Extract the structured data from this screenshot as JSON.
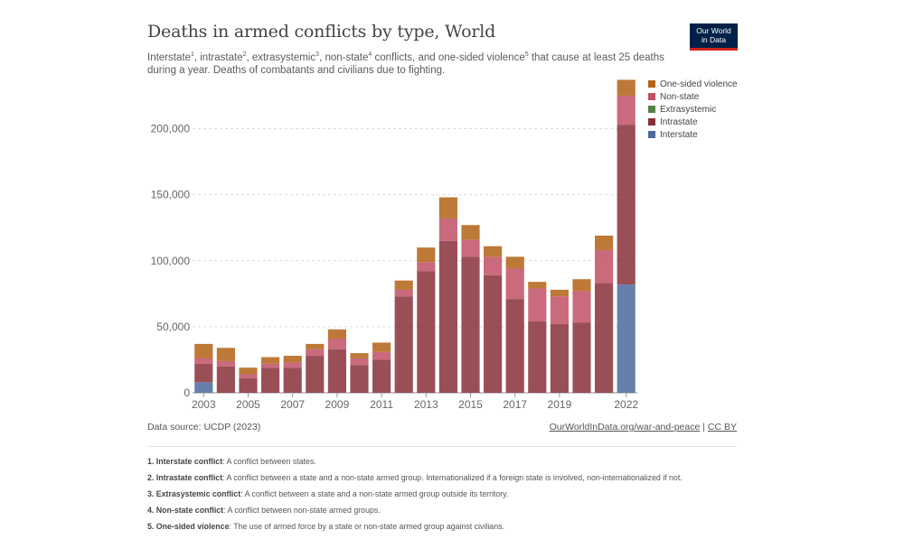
{
  "title": "Deaths in armed conflicts by type, World",
  "subtitle": {
    "parts": [
      {
        "text": "Interstate",
        "sup": "1"
      },
      {
        "text": ", intrastate",
        "sup": "2"
      },
      {
        "text": ", extrasystemic",
        "sup": "3"
      },
      {
        "text": ", non-state",
        "sup": "4"
      },
      {
        "text": " conflicts, and one-sided violence",
        "sup": "5"
      },
      {
        "text": " that cause at least 25 deaths during a year. Deaths of combatants and civilians due to fighting.",
        "sup": ""
      }
    ]
  },
  "logo": {
    "line1": "Our World",
    "line2": "in Data"
  },
  "footer": {
    "source": "Data source: UCDP (2023)",
    "link": "OurWorldInData.org/war-and-peace",
    "license": "CC BY"
  },
  "notes": [
    {
      "num": "1.",
      "term": "Interstate conflict",
      "text": ": A conflict between states."
    },
    {
      "num": "2.",
      "term": "Intrastate conflict",
      "text": ": A conflict between a state and a non-state armed group. Internationalized if a foreign state is involved, non-internationalized if not."
    },
    {
      "num": "3.",
      "term": "Extrasystemic conflict",
      "text": ": A conflict between a state and a non-state armed group outside its territory."
    },
    {
      "num": "4.",
      "term": "Non-state conflict",
      "text": ": A conflict between non-state armed groups."
    },
    {
      "num": "5.",
      "term": "One-sided violence",
      "text": ": The use of armed force by a state or non-state armed group against civilians."
    }
  ],
  "chart_data": {
    "type": "bar",
    "stacked": true,
    "ylim": [
      0,
      240000
    ],
    "yticks": [
      0,
      50000,
      100000,
      150000,
      200000
    ],
    "ytick_labels": [
      "0",
      "50,000",
      "100,000",
      "150,000",
      "200,000"
    ],
    "grid": true,
    "legend_position": "top-right",
    "categories": [
      "2003",
      "2004",
      "2005",
      "2006",
      "2007",
      "2008",
      "2009",
      "2010",
      "2011",
      "2012",
      "2013",
      "2014",
      "2015",
      "2016",
      "2017",
      "2018",
      "2019",
      "2020",
      "2021",
      "2022"
    ],
    "xtick_labels": [
      "2003",
      "2005",
      "2007",
      "2009",
      "2011",
      "2013",
      "2015",
      "2017",
      "2019",
      "2022"
    ],
    "series": [
      {
        "name": "Interstate",
        "color": "#4c6a9c",
        "values": [
          8000,
          0,
          0,
          0,
          0,
          0,
          0,
          0,
          0,
          0,
          0,
          0,
          0,
          0,
          0,
          0,
          0,
          0,
          0,
          82000
        ]
      },
      {
        "name": "Intrastate",
        "color": "#883039",
        "values": [
          14000,
          20000,
          11000,
          19000,
          19000,
          28000,
          33000,
          21000,
          25000,
          73000,
          92000,
          115000,
          103000,
          89000,
          71000,
          54000,
          52000,
          53000,
          83000,
          121000
        ]
      },
      {
        "name": "Extrasystemic",
        "color": "#578145",
        "values": [
          0,
          0,
          0,
          0,
          0,
          0,
          0,
          0,
          0,
          0,
          0,
          0,
          0,
          0,
          0,
          0,
          0,
          0,
          0,
          0
        ]
      },
      {
        "name": "Non-state",
        "color": "#c15065",
        "values": [
          4000,
          4000,
          3000,
          3000,
          4000,
          5000,
          8000,
          5000,
          6000,
          5000,
          7000,
          17000,
          13000,
          14000,
          23000,
          25000,
          21000,
          24000,
          25000,
          22000
        ]
      },
      {
        "name": "One-sided violence",
        "color": "#b16214",
        "values": [
          11000,
          10000,
          5000,
          5000,
          5000,
          4000,
          7000,
          4000,
          7000,
          7000,
          11000,
          16000,
          11000,
          8000,
          9000,
          5000,
          5000,
          9000,
          11000,
          12000
        ]
      }
    ],
    "legend_order": [
      "One-sided violence",
      "Non-state",
      "Extrasystemic",
      "Intrastate",
      "Interstate"
    ]
  }
}
